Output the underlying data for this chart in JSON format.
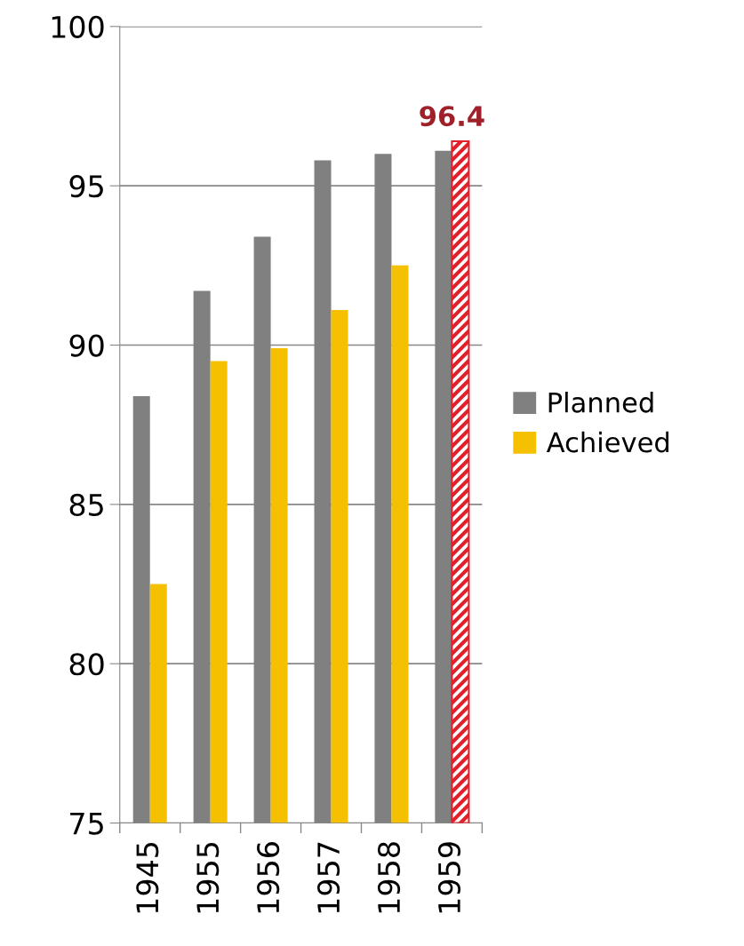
{
  "chart_data": {
    "type": "bar",
    "categories": [
      "1945",
      "1955",
      "1956",
      "1957",
      "1958",
      "1959"
    ],
    "series": [
      {
        "name": "Planned",
        "color": "#808080",
        "values": [
          88.4,
          91.7,
          93.4,
          95.8,
          96.0,
          96.1
        ]
      },
      {
        "name": "Achieved",
        "color": "#f5c000",
        "colors": [
          "#f5c000",
          "#f5c000",
          "#f5c000",
          "#f5c000",
          "#f5c000",
          "#e0202a"
        ],
        "values": [
          82.5,
          89.5,
          89.9,
          91.1,
          92.5,
          96.4
        ],
        "value_labels": [
          null,
          null,
          null,
          null,
          null,
          "96.4"
        ]
      }
    ],
    "ylim": [
      75,
      100
    ],
    "yticks": [
      75,
      80,
      85,
      90,
      95,
      100
    ],
    "grid": "y",
    "legend": "right"
  }
}
